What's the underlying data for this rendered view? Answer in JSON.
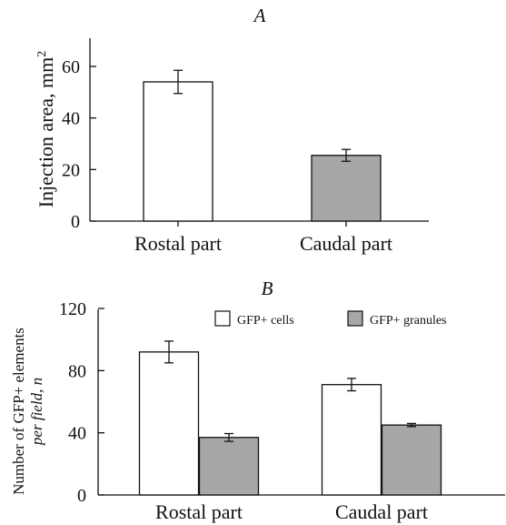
{
  "chart_data": [
    {
      "type": "bar",
      "title": "A",
      "xlabel": "",
      "ylabel": "Injection area, mm",
      "ylabel_superscript": "2",
      "categories": [
        "Rostal part",
        "Caudal part"
      ],
      "values": [
        54,
        25.5
      ],
      "errors": [
        4.5,
        2.3
      ],
      "bar_colors": [
        "#ffffff",
        "#a7a7a7"
      ],
      "ylim": [
        0,
        70
      ],
      "yticks": [
        0,
        20,
        40,
        60
      ],
      "grid": false
    },
    {
      "type": "bar",
      "title": "B",
      "xlabel": "",
      "ylabel": [
        "Number of GFP+ elements",
        "per field, n"
      ],
      "categories": [
        "Rostal part",
        "Caudal part"
      ],
      "series": [
        {
          "name": "GFP+ cells",
          "values": [
            92,
            71
          ],
          "errors": [
            7,
            4
          ],
          "color": "#ffffff"
        },
        {
          "name": "GFP+ granules",
          "values": [
            37,
            45
          ],
          "errors": [
            2.5,
            1
          ],
          "color": "#a7a7a7"
        }
      ],
      "ylim": [
        0,
        120
      ],
      "yticks": [
        0,
        40,
        80,
        120
      ],
      "legend_position": "top-right",
      "grid": false
    }
  ]
}
